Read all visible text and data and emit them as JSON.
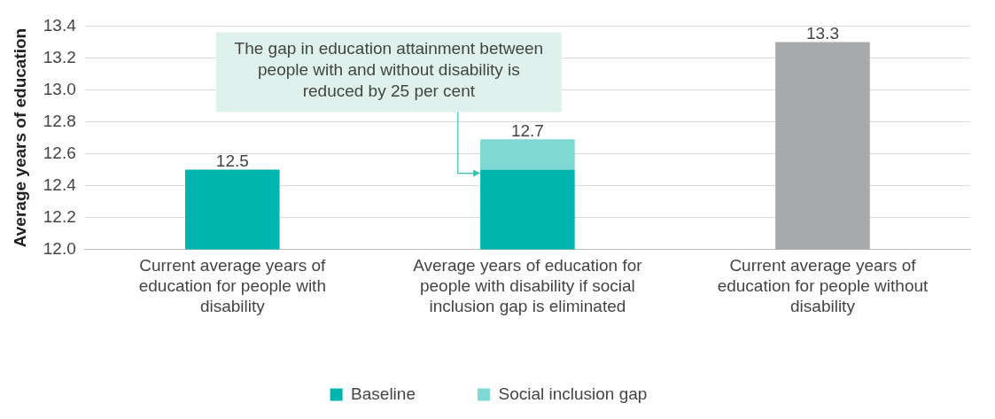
{
  "chart_data": {
    "type": "bar",
    "ylabel": "Average years of education",
    "categories": [
      "Current average years of education for people with disability",
      "Average years of education for people with disability if social inclusion gap is eliminated",
      "Current average years of education for people without disability"
    ],
    "series": [
      {
        "name": "Baseline",
        "color": "#00b5ad",
        "values": [
          12.5,
          12.5,
          null
        ]
      },
      {
        "name": "Social inclusion gap",
        "color": "#7fd8d3",
        "values": [
          null,
          0.19,
          null
        ],
        "base": [
          null,
          12.5,
          null
        ]
      },
      {
        "color": "#a7a9ac",
        "values": [
          null,
          null,
          13.3
        ]
      }
    ],
    "totals": [
      "12.5",
      "12.7",
      "13.3"
    ],
    "ylim": [
      12.0,
      13.4
    ],
    "yticks": [
      {
        "value": 12.0,
        "label": "12.0"
      },
      {
        "value": 12.2,
        "label": "12.2"
      },
      {
        "value": 12.4,
        "label": "12.4"
      },
      {
        "value": 12.6,
        "label": "12.6"
      },
      {
        "value": 12.8,
        "label": "12.8"
      },
      {
        "value": 13.0,
        "label": "13.0"
      },
      {
        "value": 13.2,
        "label": "13.2"
      },
      {
        "value": 13.4,
        "label": "13.4"
      }
    ],
    "grid": "y",
    "legend": "bottom",
    "annotations": [
      "The gap in education attainment between people with and without disability is reduced by 25 per cent"
    ]
  }
}
